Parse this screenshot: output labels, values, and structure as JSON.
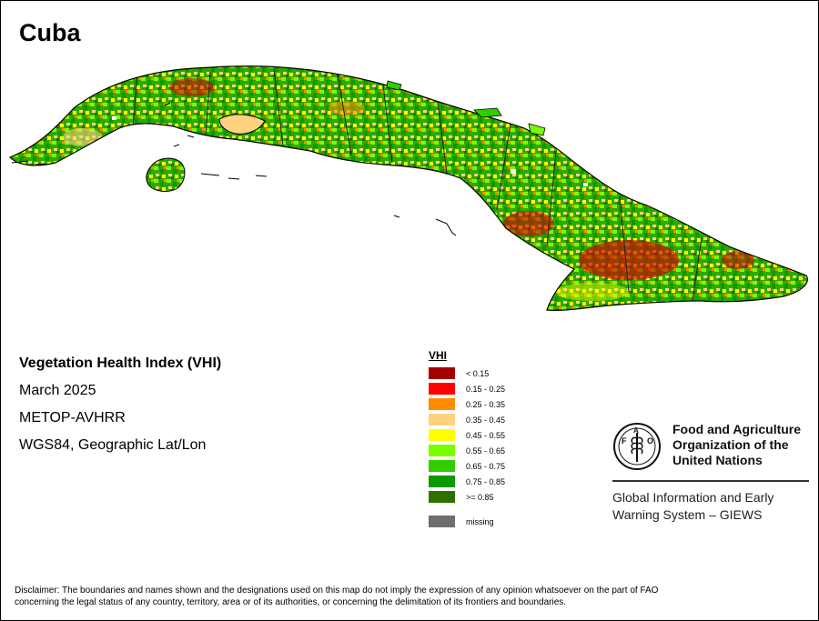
{
  "map": {
    "title": "Cuba"
  },
  "meta": {
    "index_name": "Vegetation Health Index (VHI)",
    "date": "March 2025",
    "sensor": "METOP-AVHRR",
    "projection": "WGS84, Geographic Lat/Lon"
  },
  "legend": {
    "title": "VHI",
    "items": [
      {
        "label": "< 0.15",
        "color": "#a50000"
      },
      {
        "label": "0.15 - 0.25",
        "color": "#ff0000"
      },
      {
        "label": "0.25 - 0.35",
        "color": "#ff8c00"
      },
      {
        "label": "0.35 - 0.45",
        "color": "#ffd27f"
      },
      {
        "label": "0.45 - 0.55",
        "color": "#ffff00"
      },
      {
        "label": "0.55 - 0.65",
        "color": "#7cfc00"
      },
      {
        "label": "0.65 - 0.75",
        "color": "#32cd00"
      },
      {
        "label": "0.75 - 0.85",
        "color": "#0a9a00"
      },
      {
        "label": ">= 0.85",
        "color": "#2f6f00"
      }
    ],
    "missing": {
      "label": "missing",
      "color": "#6e6e6e"
    }
  },
  "org": {
    "name_line1": "Food and Agriculture",
    "name_line2": "Organization of the",
    "name_line3": "United Nations",
    "system_line1": "Global Information and Early",
    "system_line2": "Warning System – GIEWS"
  },
  "disclaimer": {
    "line1": "Disclaimer: The boundaries and names shown and the designations used on this map do not imply the expression of any opinion whatsoever on the part of FAO",
    "line2": "concerning the legal status of any country, territory, area or of its authorities, or concerning the delimitation of its frontiers and boundaries."
  }
}
